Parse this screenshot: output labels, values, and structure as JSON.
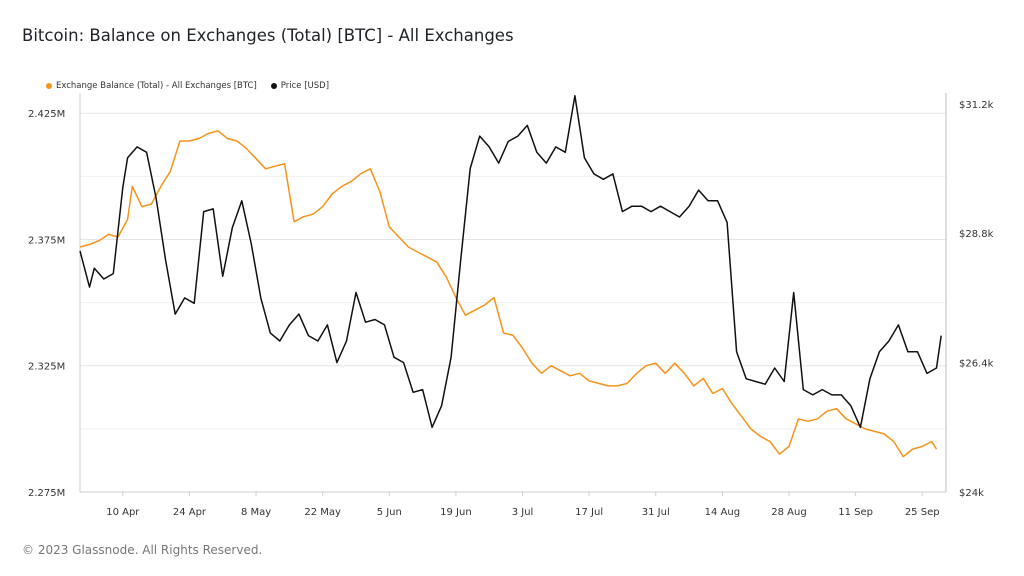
{
  "title": "Bitcoin: Balance on Exchanges (Total) [BTC] - All Exchanges",
  "footer": "© 2023 Glassnode. All Rights Reserved.",
  "colors": {
    "balance": "#f7931a",
    "price": "#111111",
    "grid": "#e6e6e6"
  },
  "chart_data": {
    "type": "line",
    "legend_placement": "top-left",
    "grid": true,
    "x_tick_labels": [
      "10 Apr",
      "24 Apr",
      "8 May",
      "22 May",
      "5 Jun",
      "19 Jun",
      "3 Jul",
      "17 Jul",
      "31 Jul",
      "14 Aug",
      "28 Aug",
      "11 Sep",
      "25 Sep"
    ],
    "y_left": {
      "tick_labels": [
        "2.275M",
        "2.325M",
        "2.375M",
        "2.425M"
      ],
      "ticks": [
        2275000,
        2325000,
        2375000,
        2425000
      ],
      "range": [
        2275000,
        2433000
      ]
    },
    "y_right": {
      "tick_labels": [
        "$24k",
        "$26.4k",
        "$28.8k",
        "$31.2k"
      ],
      "ticks": [
        24000,
        26400,
        28800,
        31200
      ],
      "range": [
        24000,
        31400
      ]
    },
    "x_range": [
      "2023-04-01",
      "2023-09-30"
    ],
    "series": [
      {
        "name": "Exchange Balance (Total) - All Exchanges [BTC]",
        "axis": "left",
        "values": [
          [
            "2023-04-01",
            2372000
          ],
          [
            "2023-04-03",
            2373000
          ],
          [
            "2023-04-05",
            2374500
          ],
          [
            "2023-04-07",
            2377000
          ],
          [
            "2023-04-09",
            2376000
          ],
          [
            "2023-04-11",
            2383000
          ],
          [
            "2023-04-12",
            2396000
          ],
          [
            "2023-04-14",
            2388000
          ],
          [
            "2023-04-16",
            2389000
          ],
          [
            "2023-04-18",
            2396000
          ],
          [
            "2023-04-20",
            2402000
          ],
          [
            "2023-04-22",
            2414000
          ],
          [
            "2023-04-24",
            2414000
          ],
          [
            "2023-04-26",
            2415000
          ],
          [
            "2023-04-28",
            2417000
          ],
          [
            "2023-04-30",
            2418000
          ],
          [
            "2023-05-02",
            2415000
          ],
          [
            "2023-05-04",
            2414000
          ],
          [
            "2023-05-06",
            2411000
          ],
          [
            "2023-05-08",
            2407000
          ],
          [
            "2023-05-10",
            2403000
          ],
          [
            "2023-05-12",
            2404000
          ],
          [
            "2023-05-14",
            2405000
          ],
          [
            "2023-05-16",
            2382000
          ],
          [
            "2023-05-18",
            2384000
          ],
          [
            "2023-05-20",
            2385000
          ],
          [
            "2023-05-22",
            2388000
          ],
          [
            "2023-05-24",
            2393000
          ],
          [
            "2023-05-26",
            2396000
          ],
          [
            "2023-05-28",
            2398000
          ],
          [
            "2023-05-30",
            2401000
          ],
          [
            "2023-06-01",
            2403000
          ],
          [
            "2023-06-03",
            2394000
          ],
          [
            "2023-06-05",
            2380000
          ],
          [
            "2023-06-07",
            2376000
          ],
          [
            "2023-06-09",
            2372000
          ],
          [
            "2023-06-11",
            2370000
          ],
          [
            "2023-06-13",
            2368000
          ],
          [
            "2023-06-15",
            2366000
          ],
          [
            "2023-06-17",
            2360000
          ],
          [
            "2023-06-19",
            2352000
          ],
          [
            "2023-06-21",
            2345000
          ],
          [
            "2023-06-23",
            2347000
          ],
          [
            "2023-06-25",
            2349000
          ],
          [
            "2023-06-27",
            2352000
          ],
          [
            "2023-06-29",
            2338000
          ],
          [
            "2023-07-01",
            2337000
          ],
          [
            "2023-07-03",
            2332000
          ],
          [
            "2023-07-05",
            2326000
          ],
          [
            "2023-07-07",
            2322000
          ],
          [
            "2023-07-09",
            2325000
          ],
          [
            "2023-07-11",
            2323000
          ],
          [
            "2023-07-13",
            2321000
          ],
          [
            "2023-07-15",
            2322000
          ],
          [
            "2023-07-17",
            2319000
          ],
          [
            "2023-07-19",
            2318000
          ],
          [
            "2023-07-21",
            2317000
          ],
          [
            "2023-07-23",
            2317000
          ],
          [
            "2023-07-25",
            2318000
          ],
          [
            "2023-07-27",
            2322000
          ],
          [
            "2023-07-29",
            2325000
          ],
          [
            "2023-07-31",
            2326000
          ],
          [
            "2023-08-02",
            2322000
          ],
          [
            "2023-08-04",
            2326000
          ],
          [
            "2023-08-06",
            2322000
          ],
          [
            "2023-08-08",
            2317000
          ],
          [
            "2023-08-10",
            2320000
          ],
          [
            "2023-08-12",
            2314000
          ],
          [
            "2023-08-14",
            2316000
          ],
          [
            "2023-08-16",
            2310000
          ],
          [
            "2023-08-18",
            2305000
          ],
          [
            "2023-08-20",
            2300000
          ],
          [
            "2023-08-22",
            2297000
          ],
          [
            "2023-08-24",
            2295000
          ],
          [
            "2023-08-26",
            2290000
          ],
          [
            "2023-08-28",
            2293000
          ],
          [
            "2023-08-30",
            2304000
          ],
          [
            "2023-09-01",
            2303000
          ],
          [
            "2023-09-03",
            2304000
          ],
          [
            "2023-09-05",
            2307000
          ],
          [
            "2023-09-07",
            2308000
          ],
          [
            "2023-09-09",
            2304000
          ],
          [
            "2023-09-11",
            2302000
          ],
          [
            "2023-09-13",
            2300000
          ],
          [
            "2023-09-15",
            2299000
          ],
          [
            "2023-09-17",
            2298000
          ],
          [
            "2023-09-19",
            2295000
          ],
          [
            "2023-09-21",
            2289000
          ],
          [
            "2023-09-23",
            2292000
          ],
          [
            "2023-09-25",
            2293000
          ],
          [
            "2023-09-27",
            2295000
          ],
          [
            "2023-09-28",
            2292000
          ]
        ]
      },
      {
        "name": "Price [USD]",
        "axis": "right",
        "values": [
          [
            "2023-04-01",
            28470
          ],
          [
            "2023-04-03",
            27800
          ],
          [
            "2023-04-04",
            28150
          ],
          [
            "2023-04-06",
            27950
          ],
          [
            "2023-04-08",
            28050
          ],
          [
            "2023-04-10",
            29650
          ],
          [
            "2023-04-11",
            30200
          ],
          [
            "2023-04-13",
            30400
          ],
          [
            "2023-04-15",
            30300
          ],
          [
            "2023-04-17",
            29450
          ],
          [
            "2023-04-19",
            28300
          ],
          [
            "2023-04-21",
            27300
          ],
          [
            "2023-04-23",
            27600
          ],
          [
            "2023-04-25",
            27500
          ],
          [
            "2023-04-27",
            29200
          ],
          [
            "2023-04-29",
            29250
          ],
          [
            "2023-05-01",
            28000
          ],
          [
            "2023-05-03",
            28900
          ],
          [
            "2023-05-05",
            29400
          ],
          [
            "2023-05-07",
            28600
          ],
          [
            "2023-05-09",
            27600
          ],
          [
            "2023-05-11",
            26950
          ],
          [
            "2023-05-13",
            26800
          ],
          [
            "2023-05-15",
            27100
          ],
          [
            "2023-05-17",
            27300
          ],
          [
            "2023-05-19",
            26900
          ],
          [
            "2023-05-21",
            26800
          ],
          [
            "2023-05-23",
            27100
          ],
          [
            "2023-05-25",
            26400
          ],
          [
            "2023-05-27",
            26800
          ],
          [
            "2023-05-29",
            27700
          ],
          [
            "2023-05-31",
            27150
          ],
          [
            "2023-06-02",
            27200
          ],
          [
            "2023-06-04",
            27100
          ],
          [
            "2023-06-06",
            26500
          ],
          [
            "2023-06-08",
            26400
          ],
          [
            "2023-06-10",
            25850
          ],
          [
            "2023-06-12",
            25900
          ],
          [
            "2023-06-14",
            25200
          ],
          [
            "2023-06-16",
            25600
          ],
          [
            "2023-06-18",
            26500
          ],
          [
            "2023-06-20",
            28300
          ],
          [
            "2023-06-22",
            30000
          ],
          [
            "2023-06-24",
            30600
          ],
          [
            "2023-06-26",
            30400
          ],
          [
            "2023-06-28",
            30100
          ],
          [
            "2023-06-30",
            30500
          ],
          [
            "2023-07-02",
            30600
          ],
          [
            "2023-07-04",
            30800
          ],
          [
            "2023-07-06",
            30300
          ],
          [
            "2023-07-08",
            30100
          ],
          [
            "2023-07-10",
            30400
          ],
          [
            "2023-07-12",
            30300
          ],
          [
            "2023-07-14",
            31350
          ],
          [
            "2023-07-16",
            30200
          ],
          [
            "2023-07-18",
            29900
          ],
          [
            "2023-07-20",
            29800
          ],
          [
            "2023-07-22",
            29900
          ],
          [
            "2023-07-24",
            29200
          ],
          [
            "2023-07-26",
            29300
          ],
          [
            "2023-07-28",
            29300
          ],
          [
            "2023-07-30",
            29200
          ],
          [
            "2023-08-01",
            29300
          ],
          [
            "2023-08-03",
            29200
          ],
          [
            "2023-08-05",
            29100
          ],
          [
            "2023-08-07",
            29300
          ],
          [
            "2023-08-09",
            29600
          ],
          [
            "2023-08-11",
            29400
          ],
          [
            "2023-08-13",
            29400
          ],
          [
            "2023-08-15",
            29000
          ],
          [
            "2023-08-17",
            26600
          ],
          [
            "2023-08-19",
            26100
          ],
          [
            "2023-08-21",
            26050
          ],
          [
            "2023-08-23",
            26000
          ],
          [
            "2023-08-25",
            26300
          ],
          [
            "2023-08-27",
            26050
          ],
          [
            "2023-08-29",
            27700
          ],
          [
            "2023-08-31",
            25900
          ],
          [
            "2023-09-02",
            25800
          ],
          [
            "2023-09-04",
            25900
          ],
          [
            "2023-09-06",
            25800
          ],
          [
            "2023-09-08",
            25800
          ],
          [
            "2023-09-10",
            25600
          ],
          [
            "2023-09-12",
            25200
          ],
          [
            "2023-09-14",
            26100
          ],
          [
            "2023-09-16",
            26600
          ],
          [
            "2023-09-18",
            26800
          ],
          [
            "2023-09-20",
            27100
          ],
          [
            "2023-09-22",
            26600
          ],
          [
            "2023-09-24",
            26600
          ],
          [
            "2023-09-26",
            26200
          ],
          [
            "2023-09-28",
            26300
          ],
          [
            "2023-09-29",
            26900
          ]
        ]
      }
    ]
  }
}
